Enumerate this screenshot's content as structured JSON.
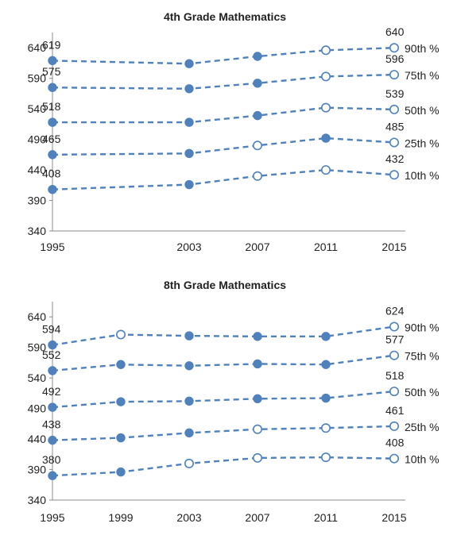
{
  "chart_data": [
    {
      "type": "line",
      "title": "4th Grade Mathematics",
      "xlabel": "",
      "ylabel": "",
      "x": [
        1995,
        2003,
        2007,
        2011,
        2015
      ],
      "xticks": [
        "1995",
        "2003",
        "2007",
        "2011",
        "2015"
      ],
      "ylim": [
        340,
        665
      ],
      "yticks": [
        "340",
        "390",
        "440",
        "490",
        "540",
        "590",
        "640"
      ],
      "grid": false,
      "color": "#4f81bd",
      "series": [
        {
          "name": "90th %",
          "values": [
            619,
            614,
            626,
            636,
            640
          ],
          "hollow": [
            false,
            false,
            false,
            true,
            true
          ],
          "start_label": "619",
          "end_label": "640"
        },
        {
          "name": "75th %",
          "values": [
            575,
            573,
            582,
            593,
            596
          ],
          "hollow": [
            false,
            false,
            false,
            true,
            true
          ],
          "start_label": "575",
          "end_label": "596"
        },
        {
          "name": "50th %",
          "values": [
            518,
            518,
            529,
            542,
            539
          ],
          "hollow": [
            false,
            false,
            false,
            true,
            true
          ],
          "start_label": "518",
          "end_label": "539"
        },
        {
          "name": "25th %",
          "values": [
            465,
            467,
            480,
            492,
            485
          ],
          "hollow": [
            false,
            false,
            true,
            false,
            true
          ],
          "start_label": "465",
          "end_label": "485"
        },
        {
          "name": "10th %",
          "values": [
            408,
            416,
            430,
            440,
            432
          ],
          "hollow": [
            false,
            false,
            true,
            true,
            true
          ],
          "start_label": "408",
          "end_label": "432"
        }
      ]
    },
    {
      "type": "line",
      "title": "8th Grade Mathematics",
      "xlabel": "",
      "ylabel": "",
      "x": [
        1995,
        1999,
        2003,
        2007,
        2011,
        2015
      ],
      "xticks": [
        "1995",
        "1999",
        "2003",
        "2007",
        "2011",
        "2015"
      ],
      "ylim": [
        340,
        665
      ],
      "yticks": [
        "340",
        "390",
        "440",
        "490",
        "540",
        "590",
        "640"
      ],
      "grid": false,
      "color": "#4f81bd",
      "series": [
        {
          "name": "90th %",
          "values": [
            594,
            611,
            609,
            608,
            608,
            624
          ],
          "hollow": [
            false,
            true,
            false,
            false,
            false,
            true
          ],
          "start_label": "594",
          "end_label": "624"
        },
        {
          "name": "75th %",
          "values": [
            552,
            562,
            560,
            563,
            562,
            577
          ],
          "hollow": [
            false,
            false,
            false,
            false,
            false,
            true
          ],
          "start_label": "552",
          "end_label": "577"
        },
        {
          "name": "50th %",
          "values": [
            492,
            501,
            502,
            506,
            507,
            518
          ],
          "hollow": [
            false,
            false,
            false,
            false,
            false,
            true
          ],
          "start_label": "492",
          "end_label": "518"
        },
        {
          "name": "25th %",
          "values": [
            438,
            442,
            450,
            456,
            458,
            461
          ],
          "hollow": [
            false,
            false,
            false,
            true,
            true,
            true
          ],
          "start_label": "438",
          "end_label": "461"
        },
        {
          "name": "10th %",
          "values": [
            380,
            386,
            400,
            409,
            410,
            408
          ],
          "hollow": [
            false,
            false,
            true,
            true,
            true,
            true
          ],
          "start_label": "380",
          "end_label": "408"
        }
      ]
    }
  ]
}
